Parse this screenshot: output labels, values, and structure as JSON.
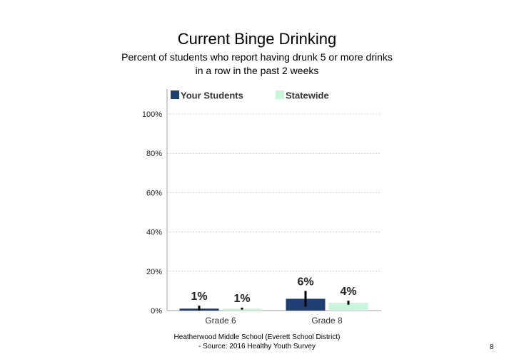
{
  "title": "Current Binge Drinking",
  "subtitle_line1": "Percent of students who report having drunk 5 or more drinks",
  "subtitle_line2": "in a row in the past 2 weeks",
  "footer_line1": "Heatherwood Middle School (Everett School District)",
  "footer_line2": "- Source: 2016 Healthy Youth Survey",
  "page_number": "8",
  "chart_data": {
    "type": "bar",
    "categories": [
      "Grade 6",
      "Grade 8"
    ],
    "series": [
      {
        "name": "Your Students",
        "values": [
          1,
          6
        ],
        "labels": [
          "1%",
          "6%"
        ],
        "error": [
          1.5,
          4
        ],
        "color": "#1f3f73"
      },
      {
        "name": "Statewide",
        "values": [
          1,
          4
        ],
        "labels": [
          "1%",
          "4%"
        ],
        "error": [
          0.5,
          1
        ],
        "color": "#c9f5dc"
      }
    ],
    "ylim": [
      0,
      100
    ],
    "yticks": [
      "0%",
      "20%",
      "40%",
      "60%",
      "80%",
      "100%"
    ],
    "ytick_values": [
      0,
      20,
      40,
      60,
      80,
      100
    ],
    "grid": true,
    "legend_position": "top"
  }
}
